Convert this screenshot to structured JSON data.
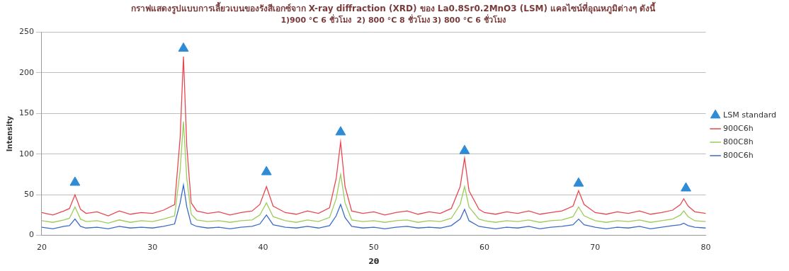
{
  "chart_data": {
    "type": "line",
    "title": "กราฟแสดงรูปแบบการเลี้ยวเบนของรังสีเอกซ์จาก X-ray diffraction (XRD) ของ La0.8Sr0.2MnO3 (LSM) แคลไซน์ที่อุณหภูมิต่างๆ ดังนี้",
    "subtitle": "1)900 °C 6 ชั่วโมง  2) 800 °C 8 ชั่วโมง 3) 800 °C 6 ชั่วโมง",
    "x_label": "2θ",
    "y_label": "Intensity",
    "xlim": [
      20,
      80
    ],
    "xticks": [
      20,
      30,
      40,
      50,
      60,
      70,
      80
    ],
    "ylim": [
      0,
      250
    ],
    "yticks": [
      0,
      50,
      100,
      150,
      200,
      250
    ],
    "grid": true,
    "legend": "right",
    "x": [
      20,
      21,
      22,
      22.5,
      23,
      23.5,
      24,
      25,
      26,
      27,
      28,
      29,
      30,
      31,
      32,
      32.5,
      32.8,
      33.1,
      33.5,
      34,
      35,
      36,
      37,
      38,
      39,
      39.7,
      40.3,
      40.9,
      42,
      43,
      44,
      45,
      46,
      46.6,
      47,
      47.4,
      48,
      49,
      50,
      51,
      52,
      53,
      54,
      55,
      56,
      57,
      57.8,
      58.2,
      58.6,
      59.5,
      60,
      61,
      62,
      63,
      64,
      65,
      66,
      67,
      68,
      68.5,
      69,
      70,
      71,
      72,
      73,
      74,
      75,
      76,
      77,
      77.7,
      78,
      78.4,
      79,
      80
    ],
    "series": [
      {
        "name": "LSM standard",
        "type": "scatter",
        "marker": "triangle",
        "color": "#2e8bd6",
        "x": [
          23,
          32.8,
          40.3,
          47,
          58.2,
          68.5,
          78.2
        ],
        "values": [
          65,
          230,
          78,
          127,
          104,
          64,
          58
        ]
      },
      {
        "name": "900C6h",
        "type": "line",
        "color": "#e8474f",
        "values": [
          28,
          25,
          30,
          33,
          50,
          32,
          27,
          29,
          24,
          30,
          26,
          28,
          27,
          31,
          38,
          120,
          220,
          110,
          40,
          30,
          27,
          29,
          25,
          28,
          30,
          38,
          60,
          36,
          28,
          26,
          30,
          27,
          34,
          70,
          115,
          60,
          30,
          27,
          29,
          25,
          28,
          30,
          26,
          29,
          27,
          33,
          60,
          95,
          55,
          32,
          28,
          26,
          29,
          27,
          30,
          26,
          28,
          30,
          36,
          55,
          38,
          28,
          26,
          29,
          27,
          30,
          26,
          28,
          31,
          38,
          45,
          36,
          29,
          27
        ]
      },
      {
        "name": "800C8h",
        "type": "line",
        "color": "#9acd5a",
        "values": [
          18,
          16,
          19,
          21,
          35,
          20,
          17,
          18,
          15,
          19,
          16,
          18,
          17,
          20,
          24,
          80,
          140,
          70,
          26,
          19,
          17,
          18,
          16,
          18,
          19,
          25,
          40,
          23,
          18,
          16,
          19,
          17,
          22,
          45,
          75,
          40,
          19,
          17,
          18,
          16,
          18,
          19,
          16,
          18,
          17,
          21,
          38,
          60,
          35,
          20,
          18,
          16,
          18,
          17,
          19,
          16,
          18,
          19,
          23,
          35,
          24,
          18,
          16,
          18,
          17,
          19,
          16,
          18,
          20,
          25,
          30,
          23,
          18,
          17
        ]
      },
      {
        "name": "800C6h",
        "type": "line",
        "color": "#3b6cc4",
        "values": [
          10,
          8,
          11,
          12,
          20,
          11,
          9,
          10,
          8,
          11,
          9,
          10,
          9,
          11,
          14,
          40,
          62,
          35,
          14,
          11,
          9,
          10,
          8,
          10,
          11,
          14,
          25,
          13,
          10,
          9,
          11,
          9,
          12,
          24,
          38,
          22,
          11,
          9,
          10,
          8,
          10,
          11,
          9,
          10,
          9,
          12,
          20,
          32,
          18,
          11,
          10,
          8,
          10,
          9,
          11,
          8,
          10,
          11,
          13,
          20,
          13,
          10,
          8,
          10,
          9,
          11,
          8,
          10,
          12,
          13,
          15,
          12,
          10,
          9
        ]
      }
    ]
  }
}
